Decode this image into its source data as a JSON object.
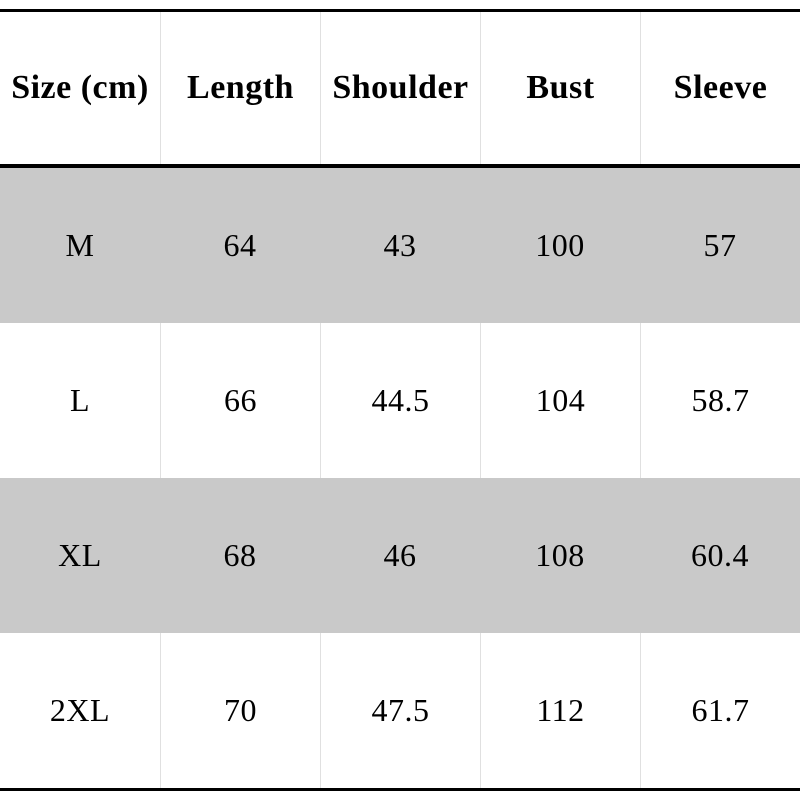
{
  "chart_data": {
    "type": "table",
    "columns": [
      "Size (cm)",
      "Length",
      "Shoulder",
      "Bust",
      "Sleeve"
    ],
    "rows": [
      [
        "M",
        "64",
        "43",
        "100",
        "57"
      ],
      [
        "L",
        "66",
        "44.5",
        "104",
        "58.7"
      ],
      [
        "XL",
        "68",
        "46",
        "108",
        "60.4"
      ],
      [
        "2XL",
        "70",
        "47.5",
        "112",
        "61.7"
      ]
    ],
    "layout": {
      "shaded_row_indexes": [
        0,
        2
      ],
      "grid": "horizontal rules top/header/bottom, light column separators"
    }
  },
  "colors": {
    "row_shaded": "#c9c9c9",
    "row_plain": "#ffffff",
    "rule_black": "#000000",
    "column_separator": "#e0e0e0",
    "text": "#000000"
  }
}
